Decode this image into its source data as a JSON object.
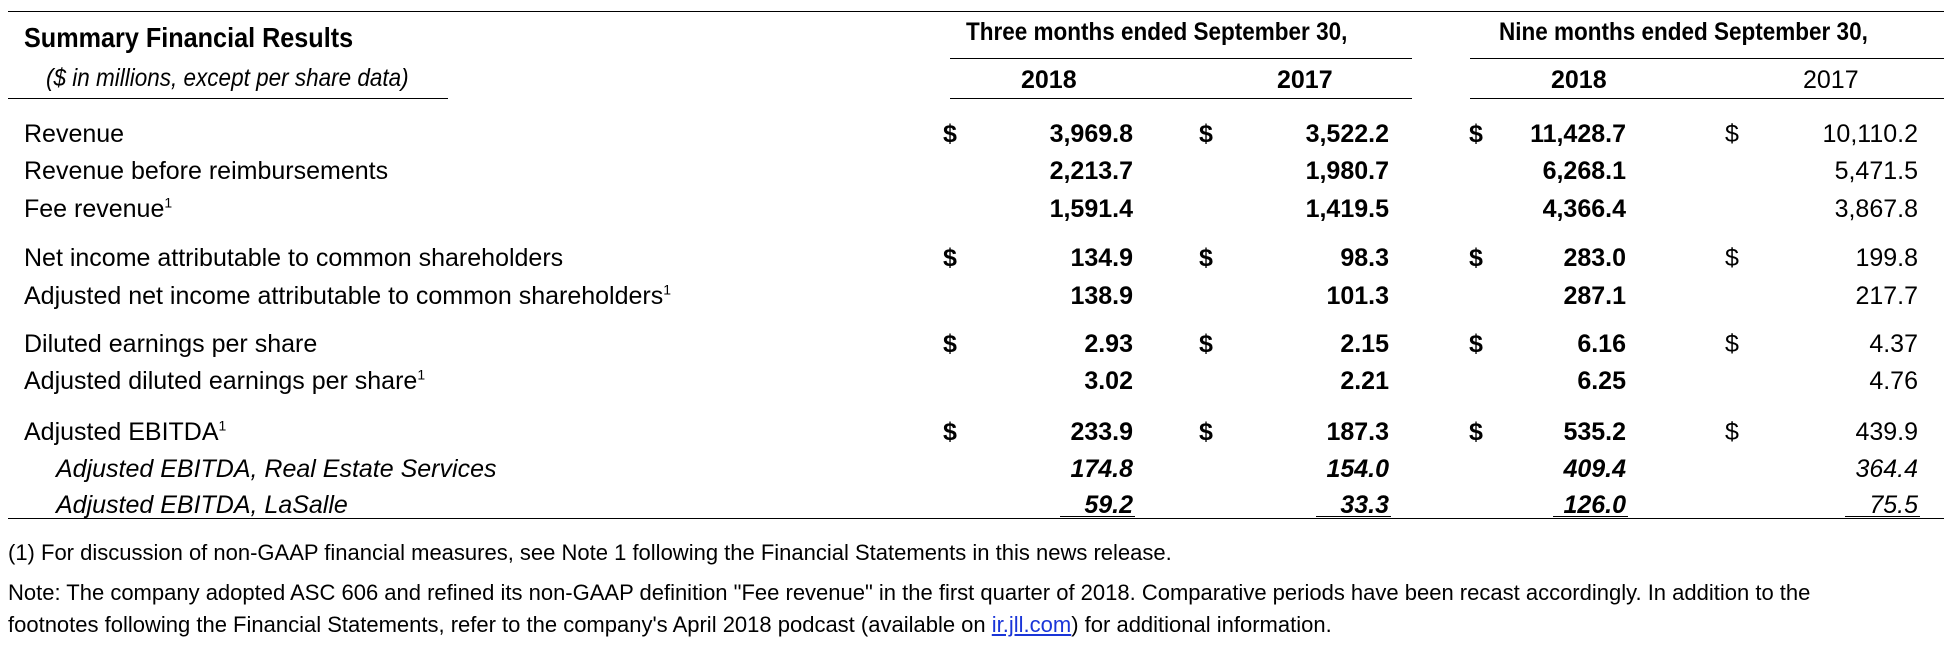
{
  "header": {
    "title": "Summary Financial Results",
    "subtitle": "($ in millions, except per share data)",
    "period_three": "Three months ended September 30,",
    "period_nine": "Nine months ended September 30,",
    "year_2018": "2018",
    "year_2017": "2017"
  },
  "currency_symbol": "$",
  "rows": [
    {
      "label": "Revenue",
      "sup": "",
      "q2018": "3,969.8",
      "q2017": "3,522.2",
      "n2018": "11,428.7",
      "n2017": "10,110.2"
    },
    {
      "label": "Revenue before reimbursements",
      "sup": "",
      "q2018": "2,213.7",
      "q2017": "1,980.7",
      "n2018": "6,268.1",
      "n2017": "5,471.5"
    },
    {
      "label": "Fee revenue",
      "sup": "1",
      "q2018": "1,591.4",
      "q2017": "1,419.5",
      "n2018": "4,366.4",
      "n2017": "3,867.8"
    },
    {
      "label": "Net income attributable to common shareholders",
      "sup": "",
      "q2018": "134.9",
      "q2017": "98.3",
      "n2018": "283.0",
      "n2017": "199.8"
    },
    {
      "label": "Adjusted net income attributable to common shareholders",
      "sup": "1",
      "q2018": "138.9",
      "q2017": "101.3",
      "n2018": "287.1",
      "n2017": "217.7"
    },
    {
      "label": "Diluted earnings per share",
      "sup": "",
      "q2018": "2.93",
      "q2017": "2.15",
      "n2018": "6.16",
      "n2017": "4.37"
    },
    {
      "label": "Adjusted diluted earnings per share",
      "sup": "1",
      "q2018": "3.02",
      "q2017": "2.21",
      "n2018": "6.25",
      "n2017": "4.76"
    },
    {
      "label": "Adjusted EBITDA",
      "sup": "1",
      "q2018": "233.9",
      "q2017": "187.3",
      "n2018": "535.2",
      "n2017": "439.9"
    },
    {
      "label": "Adjusted EBITDA, Real Estate Services",
      "sup": "",
      "q2018": "174.8",
      "q2017": "154.0",
      "n2018": "409.4",
      "n2017": "364.4"
    },
    {
      "label": "Adjusted EBITDA, LaSalle",
      "sup": "",
      "q2018": "59.2",
      "q2017": "33.3",
      "n2018": "126.0",
      "n2017": "75.5"
    }
  ],
  "footnotes": {
    "note1": "(1) For discussion of non-GAAP financial measures, see Note 1 following the Financial Statements in this news release.",
    "note2_line1": "Note: The company adopted ASC 606 and refined its non-GAAP definition \"Fee revenue\" in the first quarter of 2018. Comparative periods have been recast accordingly. In addition to the",
    "note2_line2_before": "footnotes following the Financial Statements, refer to the company's April 2018 podcast (available on ",
    "link_text": "ir.jll.com",
    "note2_line2_after": ") for additional information."
  }
}
